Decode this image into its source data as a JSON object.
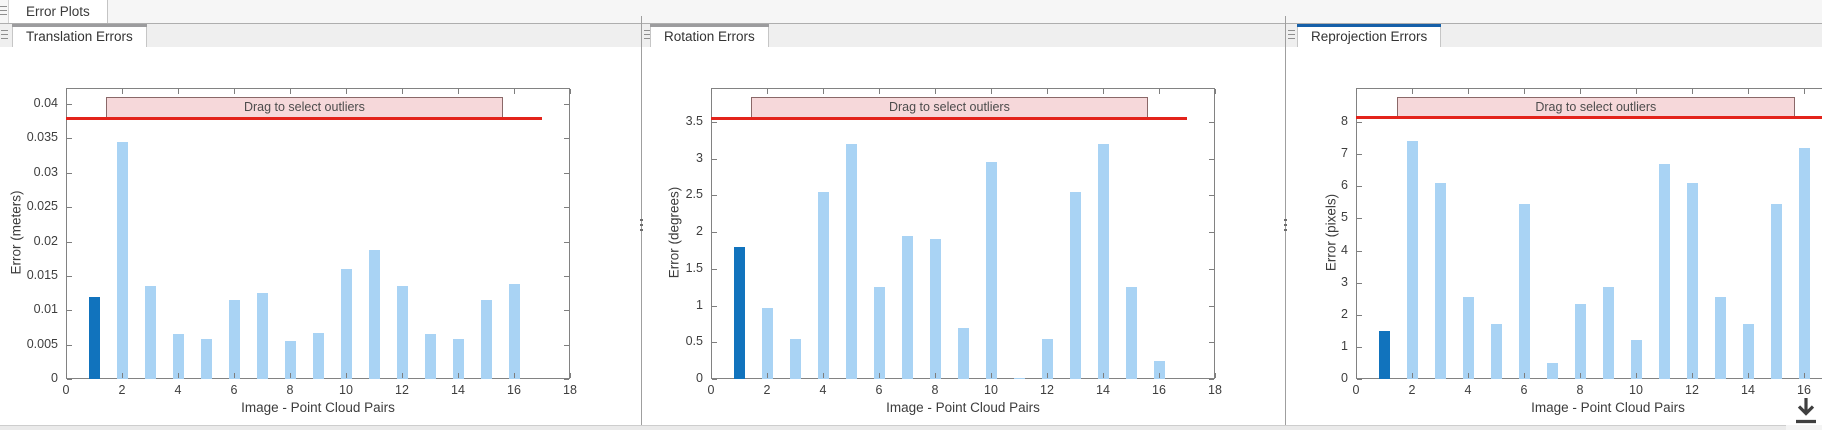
{
  "app": {
    "main_tab": "Error Plots"
  },
  "colors": {
    "bar_light": "#A9D3F4",
    "bar_dark": "#1173BD",
    "threshold_red": "#E3231B",
    "band_fill": "#F6D8DA",
    "band_border": "#8A6868",
    "active_tab_accent": "#155FA8",
    "inactive_tab_accent": "#9C9C9E"
  },
  "footer": {
    "export_icon": "download-arrow"
  },
  "panels": [
    {
      "key": "translation",
      "tab": "Translation Errors",
      "active": false,
      "chart_data": {
        "type": "bar",
        "xlabel": "Image - Point Cloud Pairs",
        "ylabel": "Error (meters)",
        "x": [
          1,
          2,
          3,
          4,
          5,
          6,
          7,
          8,
          9,
          10,
          11,
          12,
          13,
          14,
          15,
          16
        ],
        "values": [
          0.012,
          0.0345,
          0.0135,
          0.0065,
          0.0058,
          0.0115,
          0.0125,
          0.0055,
          0.0067,
          0.016,
          0.0188,
          0.0135,
          0.0065,
          0.0058,
          0.0115,
          0.0138
        ],
        "highlight_index": 0,
        "xlim": [
          0,
          18
        ],
        "ylim": [
          0,
          0.04
        ],
        "xticks": [
          0,
          2,
          4,
          6,
          8,
          10,
          12,
          14,
          16,
          18
        ],
        "yticks": [
          0,
          0.005,
          0.01,
          0.015,
          0.02,
          0.025,
          0.03,
          0.035,
          0.04
        ],
        "ytick_labels": [
          "0",
          "0.005",
          "0.01",
          "0.015",
          "0.02",
          "0.025",
          "0.03",
          "0.035",
          "0.04"
        ],
        "threshold": 0.038,
        "threshold_x": [
          0,
          17
        ],
        "band": {
          "label": "Drag to select outliers",
          "x": [
            1.43,
            15.6
          ]
        },
        "grid": false,
        "legend": null
      }
    },
    {
      "key": "rotation",
      "tab": "Rotation Errors",
      "active": false,
      "chart_data": {
        "type": "bar",
        "xlabel": "Image - Point Cloud Pairs",
        "ylabel": "Error (degrees)",
        "x": [
          1,
          2,
          3,
          4,
          5,
          6,
          7,
          8,
          9,
          10,
          11,
          12,
          13,
          14,
          15,
          16
        ],
        "values": [
          1.8,
          0.97,
          0.55,
          2.55,
          3.2,
          1.25,
          1.95,
          1.9,
          0.7,
          2.95,
          0.02,
          0.55,
          2.55,
          3.2,
          1.25,
          0.25
        ],
        "highlight_index": 0,
        "xlim": [
          0,
          18
        ],
        "ylim": [
          0,
          3.5
        ],
        "xticks": [
          0,
          2,
          4,
          6,
          8,
          10,
          12,
          14,
          16,
          18
        ],
        "yticks": [
          0,
          0.5,
          1,
          1.5,
          2,
          2.5,
          3,
          3.5
        ],
        "ytick_labels": [
          "0",
          "0.5",
          "1",
          "1.5",
          "2",
          "2.5",
          "3",
          "3.5"
        ],
        "threshold": 3.56,
        "threshold_x": [
          0,
          17
        ],
        "band": {
          "label": "Drag to select outliers",
          "x": [
            1.43,
            15.6
          ]
        },
        "grid": false,
        "legend": null
      }
    },
    {
      "key": "reprojection",
      "tab": "Reprojection Errors",
      "active": true,
      "chart_data": {
        "type": "bar",
        "xlabel": "Image - Point Cloud Pairs",
        "ylabel": "Error (pixels)",
        "x": [
          1,
          2,
          3,
          4,
          5,
          6,
          7,
          8,
          9,
          10,
          11,
          12,
          13,
          14,
          15,
          16
        ],
        "values": [
          1.5,
          7.4,
          6.1,
          2.55,
          1.7,
          5.45,
          0.5,
          2.35,
          2.85,
          1.2,
          6.7,
          6.1,
          2.55,
          1.7,
          5.45,
          7.2
        ],
        "highlight_index": 0,
        "xlim": [
          0,
          18
        ],
        "ylim": [
          0,
          8
        ],
        "xticks": [
          0,
          2,
          4,
          6,
          8,
          10,
          12,
          14,
          16,
          18
        ],
        "yticks": [
          0,
          1,
          2,
          3,
          4,
          5,
          6,
          7,
          8
        ],
        "ytick_labels": [
          "0",
          "1",
          "2",
          "3",
          "4",
          "5",
          "6",
          "7",
          "8"
        ],
        "threshold": 8.16,
        "threshold_x": [
          0,
          17
        ],
        "band": {
          "label": "Drag to select outliers",
          "x": [
            1.45,
            15.68
          ]
        },
        "grid": false,
        "legend": null
      }
    }
  ]
}
